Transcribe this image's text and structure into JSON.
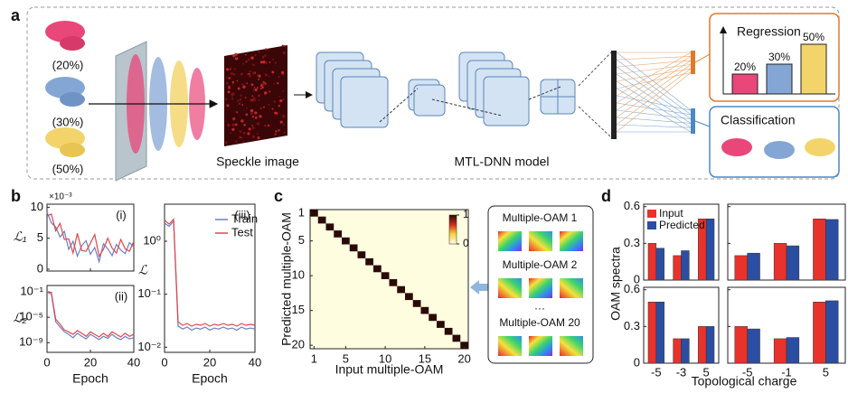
{
  "panel_a": {
    "label": "a",
    "inputs": [
      "(20%)",
      "(30%)",
      "(50%)"
    ],
    "speckle_label": "Speckle image",
    "model_label": "MTL-DNN model",
    "regression": {
      "title": "Regression",
      "values": [
        20,
        30,
        50
      ],
      "value_labels": [
        "20%",
        "30%",
        "50%"
      ],
      "colors": [
        "#e9467a",
        "#84a6d4",
        "#f2d46a"
      ]
    },
    "classification": {
      "title": "Classification"
    }
  },
  "panel_b": {
    "label": "b",
    "xlabel": "Epoch",
    "series_names": [
      "Train",
      "Test"
    ],
    "colors": [
      "#6b7fc4",
      "#e0474c"
    ],
    "epochs": [
      0,
      2,
      4,
      6,
      8,
      10,
      12,
      14,
      16,
      18,
      20,
      22,
      24,
      26,
      28,
      30,
      32,
      34,
      36,
      38,
      40
    ],
    "xlim": [
      0,
      40
    ],
    "xticks": [
      0,
      20,
      40
    ],
    "plots": [
      {
        "tag": "(i)",
        "ylabel": "ℒ₁",
        "multiplier": "×10⁻³",
        "log": false,
        "ylim": [
          -0.3,
          10.5
        ],
        "yticks": [
          0,
          5,
          10
        ],
        "train": [
          9.2,
          7.5,
          6.8,
          5.2,
          6.1,
          3.2,
          4.5,
          2.1,
          3.8,
          4.6,
          2.4,
          3.5,
          1.2,
          4.1,
          3.3,
          2.2,
          4.0,
          3.1,
          2.5,
          4.3,
          3.6
        ],
        "test": [
          8.6,
          8.9,
          6.2,
          7.4,
          4.8,
          4.9,
          2.6,
          5.8,
          3.0,
          2.9,
          4.2,
          5.6,
          2.1,
          3.2,
          5.0,
          3.4,
          2.6,
          4.8,
          3.3,
          2.9,
          4.5
        ]
      },
      {
        "tag": "(ii)",
        "ylabel": "ℒ₂",
        "log": true,
        "ylim": [
          3e-11,
          1
        ],
        "yticks": [
          {
            "value": 0.1,
            "label": "10⁻¹"
          },
          {
            "value": 1e-05,
            "label": "10⁻⁵"
          },
          {
            "value": 1e-09,
            "label": "10⁻⁹"
          }
        ],
        "train": [
          0.08,
          0.05,
          2e-06,
          3e-07,
          5e-08,
          2e-08,
          6e-09,
          3e-08,
          1e-08,
          4e-09,
          2e-08,
          8e-09,
          3e-09,
          1e-08,
          5e-09,
          2e-08,
          6e-09,
          3e-09,
          1e-08,
          4e-09,
          6e-09
        ],
        "test": [
          0.1,
          0.08,
          5e-06,
          8e-07,
          1e-07,
          5e-08,
          2e-08,
          8e-08,
          3e-08,
          1e-08,
          5e-08,
          2e-08,
          8e-09,
          3e-08,
          1e-08,
          5e-08,
          2e-08,
          8e-09,
          3e-08,
          1e-08,
          2e-08
        ]
      },
      {
        "tag": "(iii)",
        "ylabel": "ℒ",
        "log": true,
        "ylim": [
          0.008,
          5
        ],
        "yticks": [
          {
            "value": 1,
            "label": "10⁰"
          },
          {
            "value": 0.1,
            "label": "10⁻¹"
          },
          {
            "value": 0.01,
            "label": "10⁻²"
          }
        ],
        "train": [
          2.2,
          1.9,
          2.4,
          0.025,
          0.022,
          0.024,
          0.021,
          0.023,
          0.022,
          0.024,
          0.021,
          0.023,
          0.022,
          0.024,
          0.022,
          0.023,
          0.021,
          0.024,
          0.022,
          0.023,
          0.022
        ],
        "test": [
          2.5,
          2.1,
          2.6,
          0.03,
          0.026,
          0.028,
          0.025,
          0.027,
          0.026,
          0.028,
          0.025,
          0.027,
          0.026,
          0.028,
          0.026,
          0.027,
          0.025,
          0.028,
          0.026,
          0.027,
          0.026
        ]
      }
    ]
  },
  "panel_c": {
    "label": "c",
    "xlabel": "Input multiple-OAM",
    "ylabel": "Predicted multiple-OAM",
    "lim": [
      0.5,
      20.5
    ],
    "ticks": [
      1,
      5,
      10,
      15,
      20
    ],
    "diagonal": [
      1,
      1,
      1,
      1,
      1,
      1,
      1,
      1,
      1,
      1,
      1,
      1,
      1,
      1,
      1,
      1,
      1,
      1,
      1,
      1
    ],
    "colorbar": {
      "lim": [
        0,
        1
      ],
      "ticks": [
        0,
        1
      ]
    },
    "legend_items": [
      "Multiple-OAM 1",
      "Multiple-OAM 2",
      "···",
      "Multiple-OAM 20"
    ]
  },
  "panel_d": {
    "label": "d",
    "ylabel": "OAM spectra",
    "xlabel": "Topological charge",
    "legend": [
      "Input",
      "Predicted"
    ],
    "colors": [
      "#e8322b",
      "#2b4ea2"
    ],
    "ylim": [
      0,
      0.62
    ],
    "yticks": [
      0,
      0.3,
      0.6
    ],
    "column_categories": [
      [
        "-5",
        "-3",
        "5"
      ],
      [
        "-5",
        "-1",
        "5"
      ]
    ],
    "plots": [
      {
        "input": [
          0.3,
          0.2,
          0.5
        ],
        "predicted": [
          0.26,
          0.24,
          0.5
        ]
      },
      {
        "input": [
          0.2,
          0.3,
          0.5
        ],
        "predicted": [
          0.22,
          0.28,
          0.495
        ]
      },
      {
        "input": [
          0.5,
          0.2,
          0.3
        ],
        "predicted": [
          0.5,
          0.2,
          0.3
        ]
      },
      {
        "input": [
          0.3,
          0.2,
          0.5
        ],
        "predicted": [
          0.28,
          0.21,
          0.51
        ]
      }
    ]
  }
}
